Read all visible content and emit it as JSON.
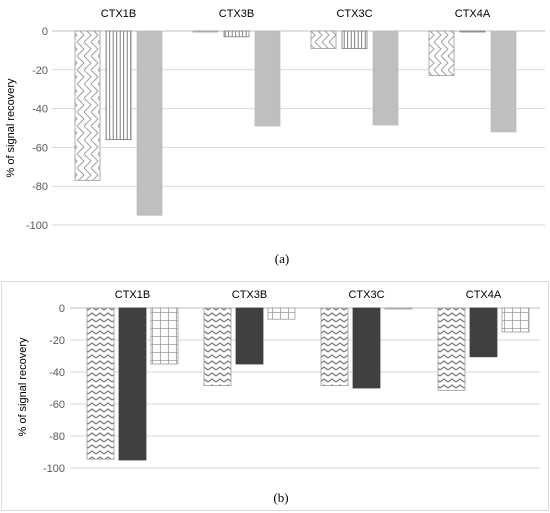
{
  "chart_data": [
    {
      "type": "bar",
      "panel_label": "(a)",
      "ylabel": "% of signal recovery",
      "categories": [
        "CTX1B",
        "CTX3B",
        "CTX3C",
        "CTX4A"
      ],
      "ylim": [
        -100,
        0
      ],
      "yticks": [
        0,
        -20,
        -40,
        -60,
        -80,
        -100
      ],
      "grid": true,
      "legend": "none",
      "series": [
        {
          "pattern": "zigzag-diagonal",
          "values": [
            -77,
            -0.5,
            -9,
            -23
          ]
        },
        {
          "pattern": "vertical-lines",
          "values": [
            -56,
            -3,
            -9,
            -0.5
          ]
        },
        {
          "pattern": "solid-light-gray",
          "values": [
            -95,
            -49,
            -48.5,
            -52
          ]
        }
      ]
    },
    {
      "type": "bar",
      "panel_label": "(b)",
      "ylabel": "% of signal recovery",
      "categories": [
        "CTX1B",
        "CTX3B",
        "CTX3C",
        "CTX4A"
      ],
      "ylim": [
        -100,
        0
      ],
      "yticks": [
        0,
        -20,
        -40,
        -60,
        -80,
        -100
      ],
      "grid": true,
      "legend": "none",
      "series": [
        {
          "pattern": "zigzag-horizontal",
          "values": [
            -94.5,
            -48.5,
            -48.5,
            -51.5
          ]
        },
        {
          "pattern": "solid-dark-gray",
          "values": [
            -95,
            -35,
            -50,
            -30.5
          ]
        },
        {
          "pattern": "grid-squares",
          "values": [
            -35,
            -7,
            -0.5,
            -15
          ]
        }
      ]
    }
  ],
  "colors": {
    "axis_text": "#595959",
    "gridline": "#d9d9d9",
    "zero_line": "#bfbfbf",
    "bar_light": "#bfbfbf",
    "bar_dark": "#404040",
    "pattern_stroke": "#8c8c8c",
    "panel_border": "#d9d9d9"
  }
}
